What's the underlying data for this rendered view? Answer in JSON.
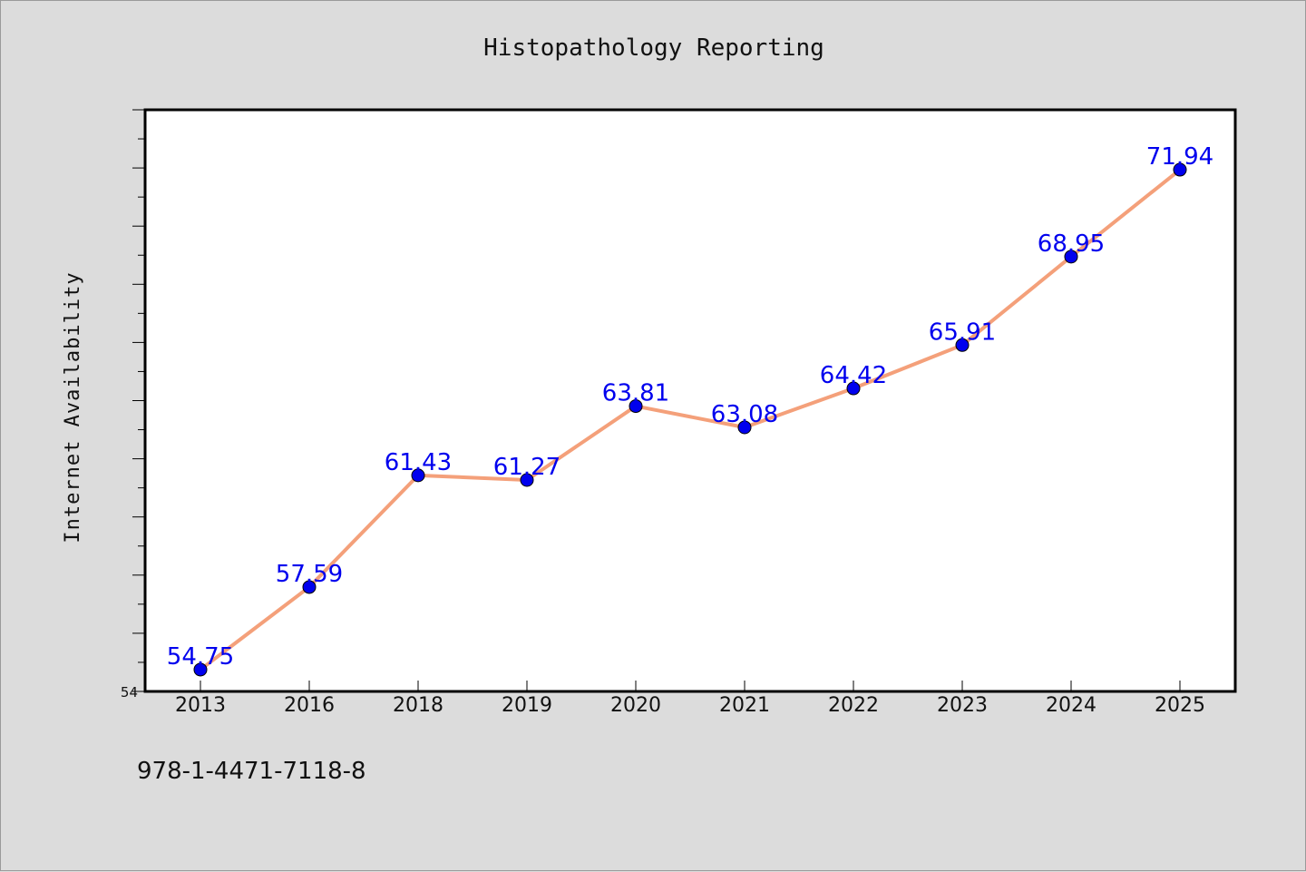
{
  "chart_data": {
    "type": "line",
    "title": "Histopathology Reporting",
    "xlabel": "",
    "ylabel": "Internet Availability",
    "categories": [
      "2013",
      "2016",
      "2018",
      "2019",
      "2020",
      "2021",
      "2022",
      "2023",
      "2024",
      "2025"
    ],
    "series": [
      {
        "values": [
          54.75,
          57.59,
          61.43,
          61.27,
          63.81,
          63.08,
          64.42,
          65.91,
          68.95,
          71.94
        ]
      }
    ],
    "data_labels": [
      "54.75",
      "57.59",
      "61.43",
      "61.27",
      "63.81",
      "63.08",
      "64.42",
      "65.91",
      "68.95",
      "71.94"
    ],
    "ylim": [
      54,
      74
    ],
    "yticks_labeled": [
      "54"
    ],
    "grid": false,
    "line_color": "#f4a07a",
    "marker_color": "#0000ee",
    "label_color": "#0000ee"
  },
  "footer": {
    "isbn": "978-1-4471-7118-8"
  }
}
